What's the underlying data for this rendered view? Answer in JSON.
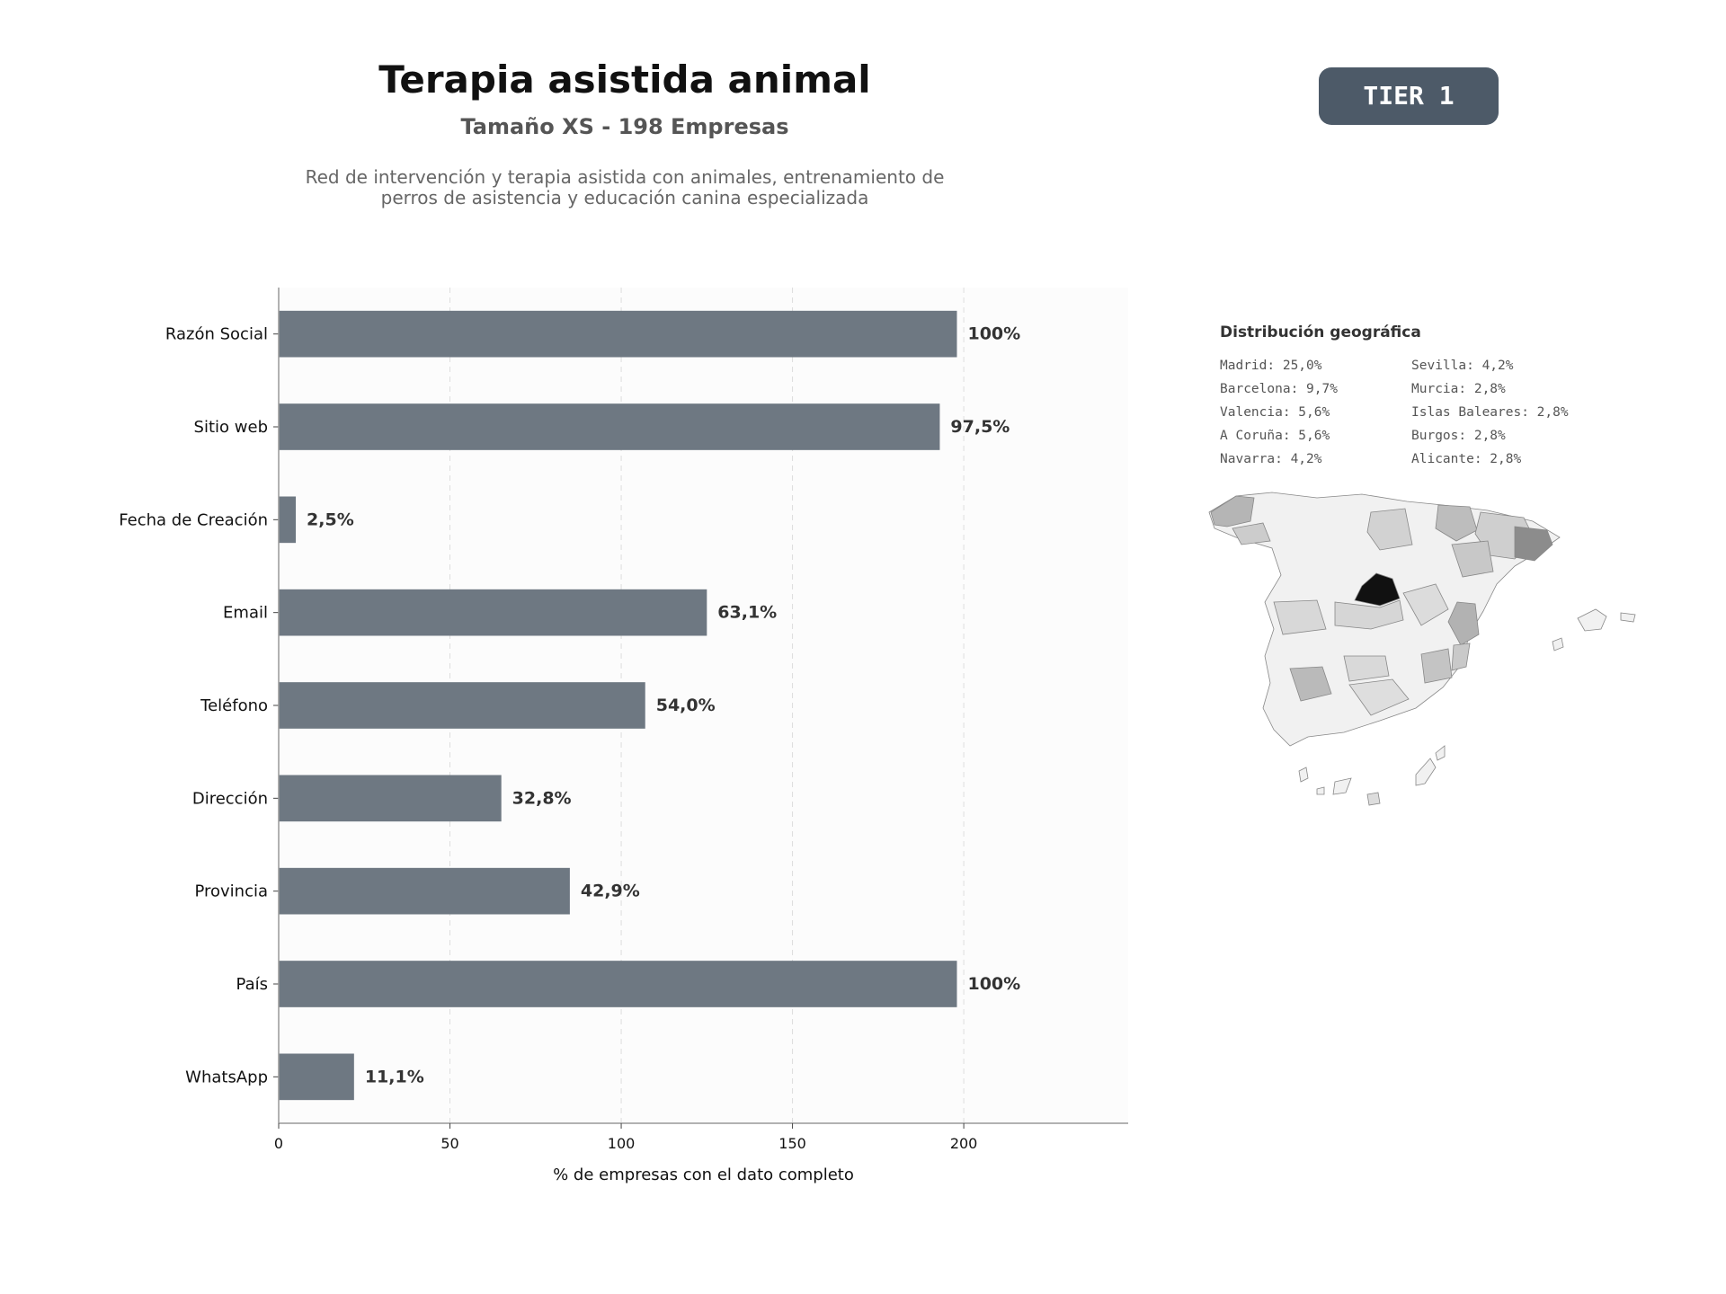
{
  "header": {
    "title": "Terapia asistida animal",
    "subtitle": "Tamaño XS - 198 Empresas",
    "description_line1": "Red de intervención y terapia asistida con animales, entrenamiento de",
    "description_line2": "perros de asistencia y educación canina especializada",
    "tier": "TIER 1"
  },
  "colors": {
    "bar": "#6e7882",
    "badge": "#4d5a68",
    "plot_bg": "#fcfcfc",
    "highlight": "#111111"
  },
  "chart_data": {
    "type": "bar",
    "orientation": "horizontal",
    "categories": [
      "Razón Social",
      "Sitio web",
      "Fecha de Creación",
      "Email",
      "Teléfono",
      "Dirección",
      "Provincia",
      "País",
      "WhatsApp"
    ],
    "values": [
      198,
      193,
      5,
      125,
      107,
      65,
      85,
      198,
      22
    ],
    "value_labels": [
      "100%",
      "97,5%",
      "2,5%",
      "63,1%",
      "54,0%",
      "32,8%",
      "42,9%",
      "100%",
      "11,1%"
    ],
    "xlabel": "% de empresas con el dato completo",
    "xticks": [
      0,
      50,
      100,
      150,
      200
    ],
    "xlim": [
      0,
      248
    ],
    "grid": "vertical dashed"
  },
  "geo": {
    "title": "Distribución geográfica",
    "items": [
      "Madrid: 25,0%",
      "Barcelona: 9,7%",
      "Valencia: 5,6%",
      "A Coruña: 5,6%",
      "Navarra: 4,2%",
      "Sevilla: 4,2%",
      "Murcia: 2,8%",
      "Islas Baleares: 2,8%",
      "Burgos: 2,8%",
      "Alicante: 2,8%"
    ]
  }
}
